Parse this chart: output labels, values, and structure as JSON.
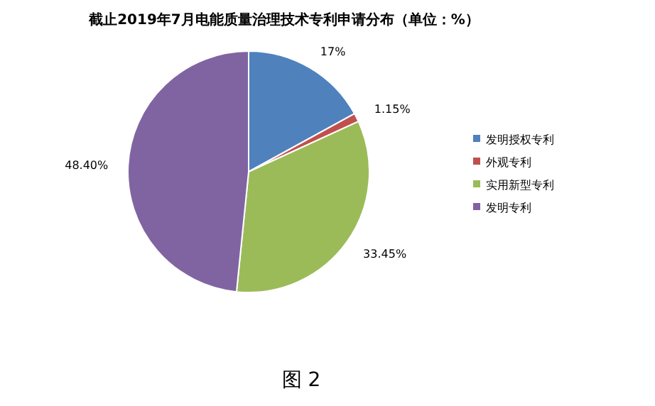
{
  "chart_data": {
    "type": "pie",
    "title": "截止2019年7月电能质量治理技术专利申请分布（单位：%）",
    "categories": [
      "发明授权专利",
      "外观专利",
      "实用新型专利",
      "发明专利"
    ],
    "values": [
      17,
      1.15,
      33.45,
      48.4
    ],
    "colors": [
      "#4f81bd",
      "#c0504d",
      "#9bbb59",
      "#8064a2"
    ],
    "value_labels": [
      "17%",
      "1.15%",
      "33.45%",
      "48.40%"
    ],
    "legend": "right",
    "annotations": [
      "图 2"
    ]
  }
}
